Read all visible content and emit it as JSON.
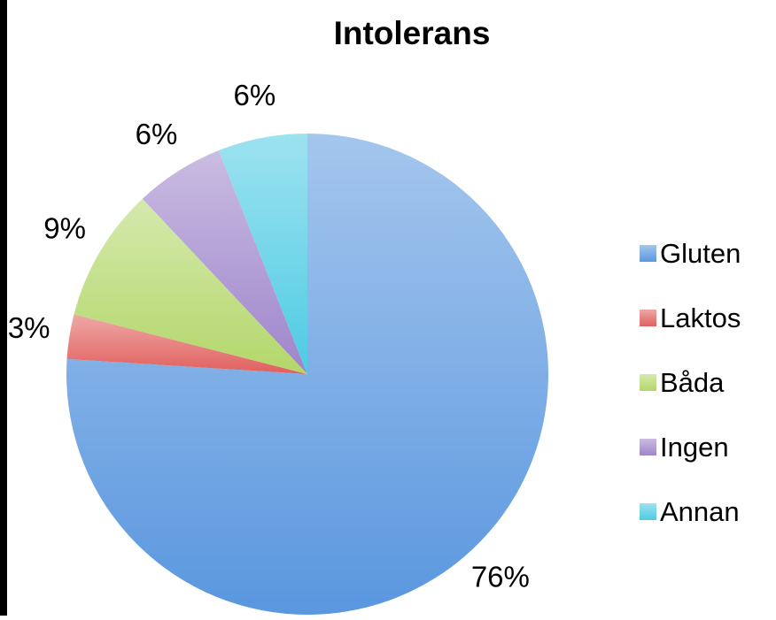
{
  "chart_data": {
    "type": "pie",
    "title": "Intolerans",
    "categories": [
      "Gluten",
      "Laktos",
      "Båda",
      "Ingen",
      "Annan"
    ],
    "values": [
      76,
      3,
      9,
      6,
      6
    ],
    "value_labels": [
      "76%",
      "3%",
      "9%",
      "6%",
      "6%"
    ],
    "colors": [
      "#5a97df",
      "#e0605e",
      "#b3d76a",
      "#9e85cb",
      "#4dcbe3"
    ],
    "legend": "right"
  }
}
